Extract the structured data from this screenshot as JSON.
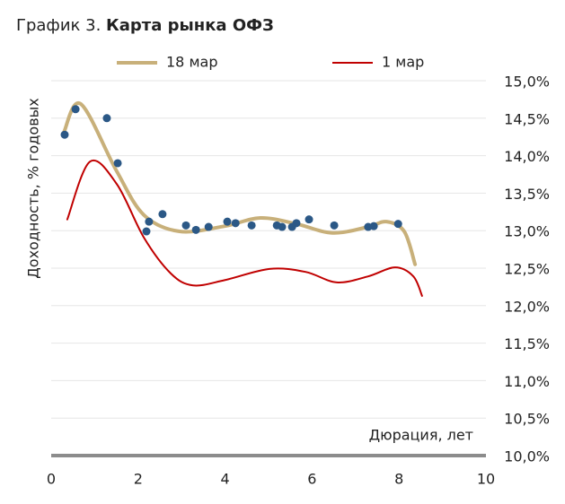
{
  "chart_data": {
    "type": "line",
    "title_prefix": "График 3.",
    "title": "Карта рынка ОФЗ",
    "y_label": "Доходность, % годовых",
    "x_label": "Дюрация, лет",
    "xlim": [
      0,
      10
    ],
    "xticks": [
      0,
      2,
      4,
      6,
      8,
      10
    ],
    "ylim": [
      10,
      15
    ],
    "yticks": [
      {
        "value": 10,
        "label": "10,0%"
      },
      {
        "value": 10.5,
        "label": "10,5%"
      },
      {
        "value": 11,
        "label": "11,0%"
      },
      {
        "value": 11.5,
        "label": "11,5%"
      },
      {
        "value": 12,
        "label": "12,0%"
      },
      {
        "value": 12.5,
        "label": "12,5%"
      },
      {
        "value": 13,
        "label": "13,0%"
      },
      {
        "value": 13.5,
        "label": "13,5%"
      },
      {
        "value": 14,
        "label": "14,0%"
      },
      {
        "value": 14.5,
        "label": "14,5%"
      },
      {
        "value": 15,
        "label": "15,0%"
      }
    ],
    "grid": true,
    "legend": "top",
    "series": [
      {
        "name": "18 мар",
        "type": "line",
        "color": "#c8b07a",
        "x": [
          0.29,
          0.68,
          1.5,
          2.13,
          2.95,
          3.99,
          4.81,
          5.64,
          6.47,
          7.29,
          7.71,
          8.12,
          8.37
        ],
        "values": [
          14.31,
          14.69,
          13.8,
          13.21,
          12.99,
          13.06,
          13.17,
          13.09,
          12.97,
          13.05,
          13.12,
          12.99,
          12.55
        ]
      },
      {
        "name": "1 мар",
        "type": "line",
        "color": "#c00000",
        "x": [
          0.37,
          0.89,
          1.51,
          2.13,
          2.75,
          3.26,
          3.99,
          5.02,
          5.85,
          6.57,
          7.29,
          7.91,
          8.33,
          8.53
        ],
        "values": [
          13.15,
          13.92,
          13.62,
          12.91,
          12.43,
          12.27,
          12.34,
          12.49,
          12.45,
          12.31,
          12.39,
          12.51,
          12.39,
          12.13
        ]
      },
      {
        "type": "scatter",
        "color": "#2b5886",
        "x": [
          0.31,
          0.56,
          1.28,
          1.53,
          2.19,
          2.25,
          2.56,
          3.1,
          3.33,
          3.62,
          4.05,
          4.24,
          4.61,
          5.19,
          5.31,
          5.54,
          5.64,
          5.93,
          6.51,
          7.29,
          7.42,
          7.98
        ],
        "values": [
          14.28,
          14.62,
          14.5,
          13.9,
          12.99,
          13.12,
          13.22,
          13.07,
          13.01,
          13.05,
          13.12,
          13.1,
          13.07,
          13.07,
          13.05,
          13.05,
          13.1,
          13.15,
          13.07,
          13.05,
          13.06,
          13.09
        ]
      }
    ]
  }
}
